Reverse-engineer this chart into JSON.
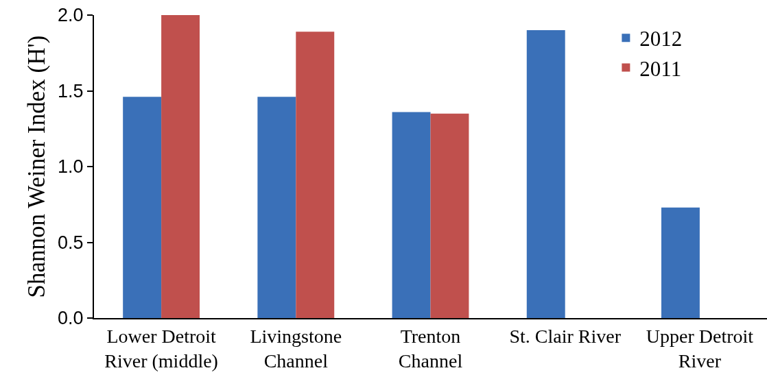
{
  "chart_data": {
    "type": "bar",
    "ylabel": "Shannon Weiner Index (H')",
    "categories": [
      "Lower Detroit River (middle)",
      "Livingstone Channel",
      "Trenton Channel",
      "St. Clair River",
      "Upper Detroit River"
    ],
    "series": [
      {
        "name": "2012",
        "color": "#3a70b8",
        "values": [
          1.46,
          1.46,
          1.36,
          1.9,
          0.73
        ]
      },
      {
        "name": "2011",
        "color": "#c0504d",
        "values": [
          2.0,
          1.89,
          1.35,
          null,
          null
        ]
      }
    ],
    "ylim": [
      0,
      2
    ],
    "yticks": [
      {
        "value": 0,
        "label": "0.0"
      },
      {
        "value": 0.5,
        "label": "0.5"
      },
      {
        "value": 1,
        "label": "1.0"
      },
      {
        "value": 1.5,
        "label": "1.5"
      },
      {
        "value": 2,
        "label": "2.0"
      }
    ],
    "grid": false,
    "legend": "top right"
  }
}
